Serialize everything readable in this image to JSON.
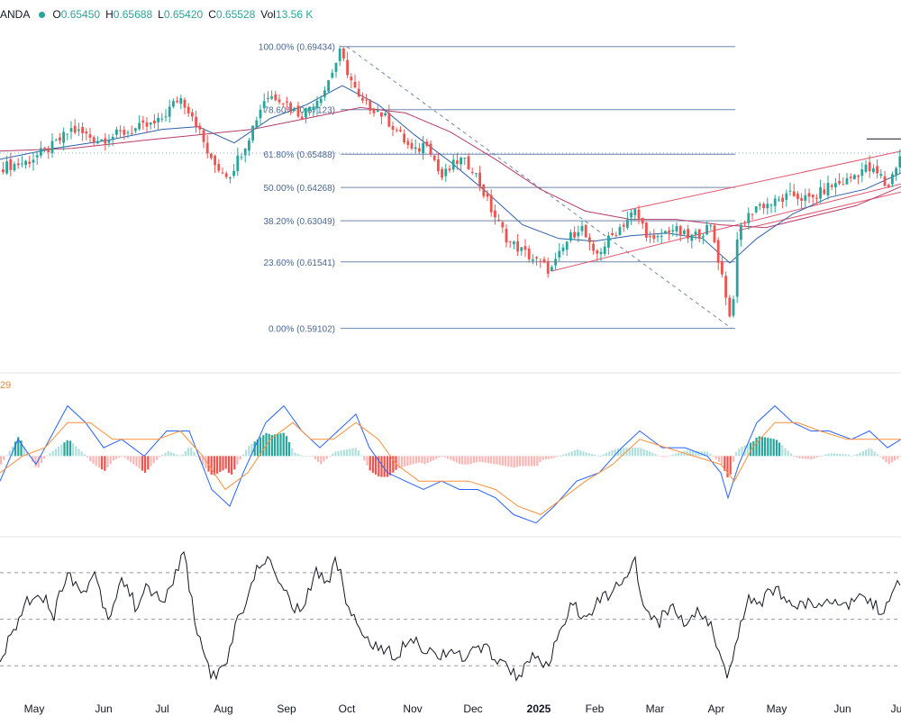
{
  "header": {
    "symbol": "ANDA",
    "ohlc": [
      {
        "k": "O",
        "v": "0.65450"
      },
      {
        "k": "H",
        "v": "0.65688"
      },
      {
        "k": "L",
        "v": "0.65420"
      },
      {
        "k": "C",
        "v": "0.65528"
      },
      {
        "k": "Vol",
        "v": "13.56 K"
      }
    ]
  },
  "macd_label": "29",
  "chart_data": {
    "type": "line",
    "x_axis_labels": [
      "May",
      "Jun",
      "Jul",
      "Aug",
      "Sep",
      "Oct",
      "Nov",
      "Dec",
      "2025",
      "Feb",
      "Mar",
      "Apr",
      "May",
      "Jun",
      "Ju"
    ],
    "fibonacci_levels": [
      {
        "label": "100.00% (0.69434)",
        "ratio": 1.0,
        "price": 0.69434
      },
      {
        "label": "78.60% (0.67123)",
        "ratio": 0.786,
        "price": 0.67123
      },
      {
        "label": "61.80% (0.65488)",
        "ratio": 0.618,
        "price": 0.65488
      },
      {
        "label": "50.00% (0.64268)",
        "ratio": 0.5,
        "price": 0.64268
      },
      {
        "label": "38.20% (0.63049)",
        "ratio": 0.382,
        "price": 0.63049
      },
      {
        "label": "23.60% (0.61541)",
        "ratio": 0.236,
        "price": 0.61541
      },
      {
        "label": "0.00% (0.59102)",
        "ratio": 0.0,
        "price": 0.59102
      }
    ],
    "price_range": [
      0.582,
      0.7015
    ],
    "price_close_path": [
      [
        0,
        0.65
      ],
      [
        30,
        0.652
      ],
      [
        60,
        0.658
      ],
      [
        80,
        0.664
      ],
      [
        110,
        0.66
      ],
      [
        130,
        0.662
      ],
      [
        150,
        0.664
      ],
      [
        175,
        0.666
      ],
      [
        200,
        0.676
      ],
      [
        215,
        0.669
      ],
      [
        235,
        0.652
      ],
      [
        255,
        0.647
      ],
      [
        275,
        0.66
      ],
      [
        295,
        0.676
      ],
      [
        310,
        0.676
      ],
      [
        335,
        0.669
      ],
      [
        360,
        0.678
      ],
      [
        378,
        0.692
      ],
      [
        400,
        0.674
      ],
      [
        420,
        0.671
      ],
      [
        440,
        0.664
      ],
      [
        460,
        0.655
      ],
      [
        475,
        0.66
      ],
      [
        490,
        0.646
      ],
      [
        510,
        0.653
      ],
      [
        525,
        0.65
      ],
      [
        545,
        0.635
      ],
      [
        565,
        0.623
      ],
      [
        590,
        0.617
      ],
      [
        612,
        0.612
      ],
      [
        630,
        0.623
      ],
      [
        645,
        0.629
      ],
      [
        660,
        0.617
      ],
      [
        680,
        0.625
      ],
      [
        705,
        0.634
      ],
      [
        725,
        0.622
      ],
      [
        745,
        0.628
      ],
      [
        765,
        0.624
      ],
      [
        790,
        0.628
      ],
      [
        805,
        0.606
      ],
      [
        812,
        0.592
      ],
      [
        820,
        0.627
      ],
      [
        840,
        0.636
      ],
      [
        860,
        0.637
      ],
      [
        880,
        0.64
      ],
      [
        900,
        0.638
      ],
      [
        920,
        0.643
      ],
      [
        940,
        0.645
      ],
      [
        960,
        0.65
      ],
      [
        978,
        0.647
      ],
      [
        985,
        0.642
      ],
      [
        1000,
        0.655
      ]
    ],
    "ma_fast": [
      [
        0,
        0.653
      ],
      [
        60,
        0.657
      ],
      [
        120,
        0.66
      ],
      [
        180,
        0.664
      ],
      [
        220,
        0.665
      ],
      [
        260,
        0.659
      ],
      [
        300,
        0.668
      ],
      [
        340,
        0.673
      ],
      [
        380,
        0.68
      ],
      [
        420,
        0.673
      ],
      [
        460,
        0.662
      ],
      [
        500,
        0.652
      ],
      [
        540,
        0.641
      ],
      [
        580,
        0.629
      ],
      [
        620,
        0.624
      ],
      [
        660,
        0.623
      ],
      [
        700,
        0.625
      ],
      [
        740,
        0.626
      ],
      [
        780,
        0.624
      ],
      [
        810,
        0.615
      ],
      [
        840,
        0.624
      ],
      [
        880,
        0.633
      ],
      [
        920,
        0.639
      ],
      [
        960,
        0.642
      ],
      [
        1000,
        0.648
      ]
    ],
    "ma_slow": [
      [
        0,
        0.656
      ],
      [
        80,
        0.657
      ],
      [
        160,
        0.66
      ],
      [
        220,
        0.662
      ],
      [
        280,
        0.664
      ],
      [
        340,
        0.668
      ],
      [
        400,
        0.672
      ],
      [
        450,
        0.67
      ],
      [
        500,
        0.663
      ],
      [
        550,
        0.653
      ],
      [
        600,
        0.642
      ],
      [
        650,
        0.634
      ],
      [
        700,
        0.631
      ],
      [
        750,
        0.631
      ],
      [
        800,
        0.629
      ],
      [
        850,
        0.628
      ],
      [
        900,
        0.632
      ],
      [
        950,
        0.636
      ],
      [
        1000,
        0.643
      ]
    ],
    "channel_lines": [
      {
        "from": [
          612,
          0.612
        ],
        "to": [
          1000,
          0.644
        ]
      },
      {
        "from": [
          690,
          0.634
        ],
        "to": [
          1000,
          0.656
        ]
      },
      {
        "from": [
          820,
          0.627
        ],
        "to": [
          1000,
          0.641
        ]
      }
    ],
    "fib_diagonal": {
      "from": [
        385,
        0.69434
      ],
      "to": [
        812,
        0.59102
      ]
    },
    "current_price": 0.65528,
    "macd": {
      "macd_line": [
        [
          0,
          -0.003
        ],
        [
          20,
          0.002
        ],
        [
          40,
          -0.001
        ],
        [
          60,
          0.003
        ],
        [
          75,
          0.006
        ],
        [
          95,
          0.004
        ],
        [
          115,
          0.001
        ],
        [
          135,
          0.002
        ],
        [
          160,
          0.0
        ],
        [
          185,
          0.003
        ],
        [
          210,
          0.003
        ],
        [
          235,
          -0.004
        ],
        [
          255,
          -0.006
        ],
        [
          270,
          -0.002
        ],
        [
          295,
          0.004
        ],
        [
          315,
          0.006
        ],
        [
          335,
          0.003
        ],
        [
          355,
          0.001
        ],
        [
          375,
          0.003
        ],
        [
          395,
          0.005
        ],
        [
          410,
          0.001
        ],
        [
          430,
          -0.002
        ],
        [
          450,
          -0.003
        ],
        [
          470,
          -0.004
        ],
        [
          490,
          -0.003
        ],
        [
          510,
          -0.004
        ],
        [
          530,
          -0.004
        ],
        [
          550,
          -0.005
        ],
        [
          570,
          -0.007
        ],
        [
          595,
          -0.008
        ],
        [
          615,
          -0.006
        ],
        [
          640,
          -0.003
        ],
        [
          665,
          -0.002
        ],
        [
          690,
          0.001
        ],
        [
          710,
          0.003
        ],
        [
          735,
          0.001
        ],
        [
          760,
          0.001
        ],
        [
          785,
          0.0
        ],
        [
          800,
          -0.002
        ],
        [
          808,
          -0.005
        ],
        [
          820,
          -0.001
        ],
        [
          840,
          0.004
        ],
        [
          860,
          0.006
        ],
        [
          880,
          0.004
        ],
        [
          900,
          0.003
        ],
        [
          920,
          0.003
        ],
        [
          945,
          0.002
        ],
        [
          965,
          0.003
        ],
        [
          985,
          0.001
        ],
        [
          1000,
          0.002
        ]
      ],
      "signal_line": [
        [
          0,
          -0.002
        ],
        [
          25,
          0.0
        ],
        [
          50,
          0.001
        ],
        [
          75,
          0.004
        ],
        [
          100,
          0.004
        ],
        [
          125,
          0.002
        ],
        [
          150,
          0.002
        ],
        [
          175,
          0.002
        ],
        [
          200,
          0.003
        ],
        [
          225,
          0.0
        ],
        [
          250,
          -0.004
        ],
        [
          275,
          -0.002
        ],
        [
          300,
          0.002
        ],
        [
          325,
          0.004
        ],
        [
          345,
          0.002
        ],
        [
          370,
          0.002
        ],
        [
          395,
          0.004
        ],
        [
          420,
          0.002
        ],
        [
          440,
          -0.001
        ],
        [
          465,
          -0.003
        ],
        [
          490,
          -0.003
        ],
        [
          520,
          -0.003
        ],
        [
          550,
          -0.004
        ],
        [
          575,
          -0.006
        ],
        [
          600,
          -0.007
        ],
        [
          625,
          -0.005
        ],
        [
          650,
          -0.003
        ],
        [
          680,
          -0.001
        ],
        [
          710,
          0.002
        ],
        [
          740,
          0.001
        ],
        [
          770,
          0.0
        ],
        [
          800,
          -0.001
        ],
        [
          815,
          -0.003
        ],
        [
          835,
          0.001
        ],
        [
          860,
          0.004
        ],
        [
          885,
          0.004
        ],
        [
          910,
          0.003
        ],
        [
          940,
          0.002
        ],
        [
          970,
          0.002
        ],
        [
          1000,
          0.002
        ]
      ],
      "range": [
        -0.009,
        0.008
      ]
    },
    "rsi": {
      "values": [
        [
          0,
          32
        ],
        [
          15,
          45
        ],
        [
          30,
          58
        ],
        [
          45,
          62
        ],
        [
          60,
          52
        ],
        [
          75,
          72
        ],
        [
          90,
          60
        ],
        [
          105,
          70
        ],
        [
          120,
          50
        ],
        [
          135,
          68
        ],
        [
          150,
          56
        ],
        [
          165,
          64
        ],
        [
          180,
          56
        ],
        [
          195,
          70
        ],
        [
          205,
          78
        ],
        [
          215,
          52
        ],
        [
          225,
          36
        ],
        [
          235,
          26
        ],
        [
          250,
          28
        ],
        [
          262,
          48
        ],
        [
          275,
          60
        ],
        [
          290,
          76
        ],
        [
          305,
          72
        ],
        [
          320,
          58
        ],
        [
          335,
          52
        ],
        [
          350,
          70
        ],
        [
          365,
          66
        ],
        [
          372,
          78
        ],
        [
          385,
          58
        ],
        [
          400,
          44
        ],
        [
          420,
          38
        ],
        [
          440,
          34
        ],
        [
          455,
          44
        ],
        [
          470,
          38
        ],
        [
          485,
          34
        ],
        [
          500,
          38
        ],
        [
          515,
          32
        ],
        [
          530,
          38
        ],
        [
          545,
          36
        ],
        [
          560,
          30
        ],
        [
          575,
          26
        ],
        [
          590,
          34
        ],
        [
          605,
          28
        ],
        [
          620,
          42
        ],
        [
          635,
          56
        ],
        [
          650,
          50
        ],
        [
          665,
          58
        ],
        [
          680,
          62
        ],
        [
          695,
          66
        ],
        [
          705,
          76
        ],
        [
          715,
          52
        ],
        [
          730,
          48
        ],
        [
          745,
          56
        ],
        [
          760,
          48
        ],
        [
          775,
          54
        ],
        [
          790,
          48
        ],
        [
          800,
          32
        ],
        [
          808,
          24
        ],
        [
          818,
          40
        ],
        [
          830,
          60
        ],
        [
          845,
          58
        ],
        [
          860,
          64
        ],
        [
          875,
          56
        ],
        [
          890,
          58
        ],
        [
          905,
          54
        ],
        [
          920,
          60
        ],
        [
          935,
          56
        ],
        [
          950,
          58
        ],
        [
          965,
          60
        ],
        [
          980,
          50
        ],
        [
          990,
          62
        ],
        [
          1000,
          66
        ]
      ],
      "levels": [
        70,
        50,
        30
      ],
      "range": [
        22,
        80
      ]
    }
  }
}
